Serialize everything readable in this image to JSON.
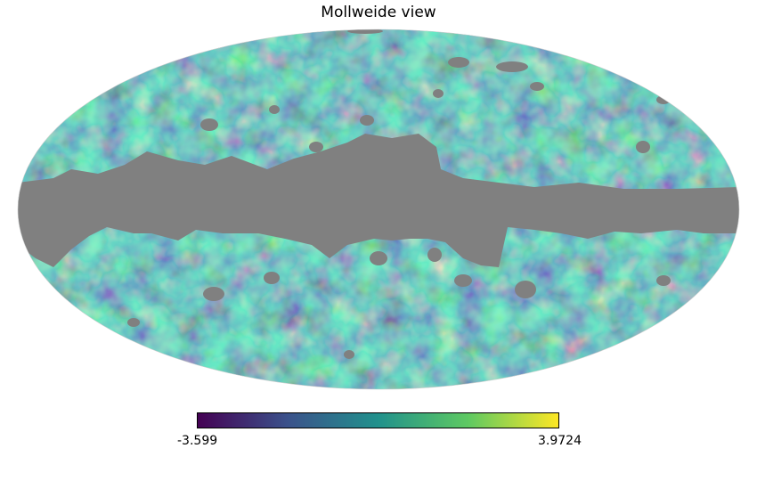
{
  "title": "Mollweide view",
  "projection": "mollweide",
  "colormap": {
    "name": "viridis",
    "min_label": "-3.599",
    "max_label": "3.9724",
    "stops": [
      "#440154",
      "#3b528b",
      "#21918c",
      "#5ec962",
      "#fde725"
    ]
  },
  "mask_color": "#808080"
}
